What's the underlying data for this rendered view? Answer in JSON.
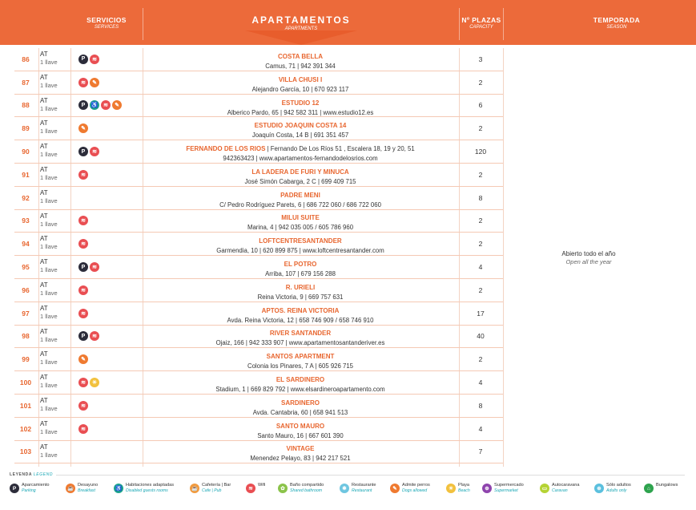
{
  "header": {
    "services": "SERVICIOS",
    "services_sub": "SERVICES",
    "title": "APARTAMENTOS",
    "title_sub": "APARTMENTS",
    "capacity": "Nº PLAZAS",
    "capacity_sub": "CAPACITY",
    "season": "TEMPORADA",
    "season_sub": "SEASON"
  },
  "season": {
    "text": "Abierto todo el año",
    "sub": "Open all the year"
  },
  "rows": [
    {
      "num": "86",
      "cat": "AT",
      "keys": "1 llave",
      "icons": [
        "parking",
        "wifi"
      ],
      "name": "COSTA BELLA",
      "addr": "Camus, 71 | 942 391 344",
      "cap": "3"
    },
    {
      "num": "87",
      "cat": "AT",
      "keys": "1 llave",
      "icons": [
        "wifi",
        "pets"
      ],
      "name": "VILLA CHUSI I",
      "addr": "Alejandro García, 10 | 670 923 117",
      "cap": "2"
    },
    {
      "num": "88",
      "cat": "AT",
      "keys": "1 llave",
      "icons": [
        "parking",
        "disabled",
        "wifi",
        "pets"
      ],
      "name": "ESTUDIO 12",
      "addr": "Alberico Pardo, 65 | 942 582 311 | www.estudio12.es",
      "cap": "6"
    },
    {
      "num": "89",
      "cat": "AT",
      "keys": "1 llave",
      "icons": [
        "pets"
      ],
      "name": "ESTUDIO JOAQUIN COSTA 14",
      "addr": "Joaquín Costa, 14 B | 691 351 457",
      "cap": "2"
    },
    {
      "num": "90",
      "cat": "AT",
      "keys": "1 llave",
      "icons": [
        "parking",
        "wifi"
      ],
      "name": "FERNANDO DE LOS RIOS",
      "name_inline": " | Fernando De Los Ríos 51 , Escalera 18, 19 y 20, 51",
      "addr": "942363423 | www.apartamentos-fernandodelosrios.com",
      "cap": "120"
    },
    {
      "num": "91",
      "cat": "AT",
      "keys": "1 llave",
      "icons": [
        "wifi"
      ],
      "name": "LA LADERA DE FURI Y MINUCA",
      "addr": "José Simón Cabarga, 2 C | 699 409 715",
      "cap": "2"
    },
    {
      "num": "92",
      "cat": "AT",
      "keys": "1 llave",
      "icons": [],
      "name": "PADRE MENI",
      "addr": "C/ Pedro Rodríguez Parets, 6 | 686 722 060 / 686 722 060",
      "cap": "8"
    },
    {
      "num": "93",
      "cat": "AT",
      "keys": "1 llave",
      "icons": [
        "wifi"
      ],
      "name": "MILUI SUITE",
      "addr": "Marina, 4 | 942 035 005 / 605 786 960",
      "cap": "2"
    },
    {
      "num": "94",
      "cat": "AT",
      "keys": "1 llave",
      "icons": [
        "wifi"
      ],
      "name": "LOFTCENTRESANTANDER",
      "addr": "Garmendia, 10 | 620 899 875 | www.loftcentresantander.com",
      "cap": "2"
    },
    {
      "num": "95",
      "cat": "AT",
      "keys": "1 llave",
      "icons": [
        "parking",
        "wifi"
      ],
      "name": "EL POTRO",
      "addr": "Arriba, 107 | 679 156 288",
      "cap": "4"
    },
    {
      "num": "96",
      "cat": "AT",
      "keys": "1 llave",
      "icons": [
        "wifi"
      ],
      "name": "R. URIELI",
      "addr": "Reina Victoria, 9 | 669 757 631",
      "cap": "2"
    },
    {
      "num": "97",
      "cat": "AT",
      "keys": "1 llave",
      "icons": [
        "wifi"
      ],
      "name": "APTOS. REINA VICTORIA",
      "addr": "Avda. Reina Victoria, 12 | 658 746 909 / 658 746 910",
      "cap": "17"
    },
    {
      "num": "98",
      "cat": "AT",
      "keys": "1 llave",
      "icons": [
        "parking",
        "wifi"
      ],
      "name": "RIVER SANTANDER",
      "addr": "Ojaiz, 166 | 942 333 907 | www.apartamentosantanderiver.es",
      "cap": "40"
    },
    {
      "num": "99",
      "cat": "AT",
      "keys": "1 llave",
      "icons": [
        "pets"
      ],
      "name": "SANTOS APARTMENT",
      "addr": "Colonia los Pinares, 7 A | 605 926 715",
      "cap": "2"
    },
    {
      "num": "100",
      "cat": "AT",
      "keys": "1 llave",
      "icons": [
        "wifi",
        "beach"
      ],
      "name": "EL SARDINERO",
      "addr": "Stadium, 1 | 669 829 792 | www.elsardineroapartamento.com",
      "cap": "4"
    },
    {
      "num": "101",
      "cat": "AT",
      "keys": "1 llave",
      "icons": [
        "wifi"
      ],
      "name": "SARDINERO",
      "addr": "Avda. Cantabria, 60 | 658 941 513",
      "cap": "8"
    },
    {
      "num": "102",
      "cat": "AT",
      "keys": "1 llave",
      "icons": [
        "wifi"
      ],
      "name": "SANTO MAURO",
      "addr": "Santo Mauro, 16 | 667 601 390",
      "cap": "4"
    },
    {
      "num": "103",
      "cat": "AT",
      "keys": "1 llave",
      "icons": [],
      "name": "VINTAGE",
      "addr": "Menendez Pelayo, 83 | 942 217 521",
      "cap": "7"
    }
  ],
  "legend": {
    "label": "LEYENDA",
    "label_sub": "LEGEND",
    "items": [
      {
        "icon": "parking-icon",
        "glyph": "P",
        "color": "#2c2c3a",
        "main": "Aparcamiento",
        "sub": "Parking"
      },
      {
        "icon": "breakfast-icon",
        "glyph": "☕",
        "color": "#ef7a30",
        "main": "Desayuno",
        "sub": "Breakfast"
      },
      {
        "icon": "disabled-icon",
        "glyph": "♿",
        "color": "#1ba58c",
        "main": "Habitaciones adaptadas",
        "sub": "Disabled guests rooms"
      },
      {
        "icon": "cafe-icon",
        "glyph": "☕",
        "color": "#f19a3e",
        "main": "Cafetería | Bar",
        "sub": "Cafe | Pub"
      },
      {
        "icon": "wifi-icon",
        "glyph": "≋",
        "color": "#e94e52",
        "main": "Wifi",
        "sub": ""
      },
      {
        "icon": "shared-bathroom-icon",
        "glyph": "✿",
        "color": "#8bc34a",
        "main": "Baño compartido",
        "sub": "Shared bathroom"
      },
      {
        "icon": "restaurant-icon",
        "glyph": "✱",
        "color": "#6ec6e0",
        "main": "Restaurante",
        "sub": "Restaurant"
      },
      {
        "icon": "pets-icon",
        "glyph": "✎",
        "color": "#ef7a30",
        "main": "Admite perros",
        "sub": "Dogs allowed"
      },
      {
        "icon": "beach-icon",
        "glyph": "☀",
        "color": "#f2c13d",
        "main": "Playa",
        "sub": "Beach"
      },
      {
        "icon": "supermarket-icon",
        "glyph": "⊕",
        "color": "#8e44ad",
        "main": "Supermercado",
        "sub": "Supermarket"
      },
      {
        "icon": "caravan-icon",
        "glyph": "▭",
        "color": "#b5d334",
        "main": "Autocaravana",
        "sub": "Caravan"
      },
      {
        "icon": "adults-icon",
        "glyph": "⊛",
        "color": "#5bc0de",
        "main": "Sólo adultos",
        "sub": "Adults only"
      },
      {
        "icon": "bungalows-icon",
        "glyph": "⌂",
        "color": "#2ea34e",
        "main": "Bungalows",
        "sub": ""
      }
    ]
  }
}
